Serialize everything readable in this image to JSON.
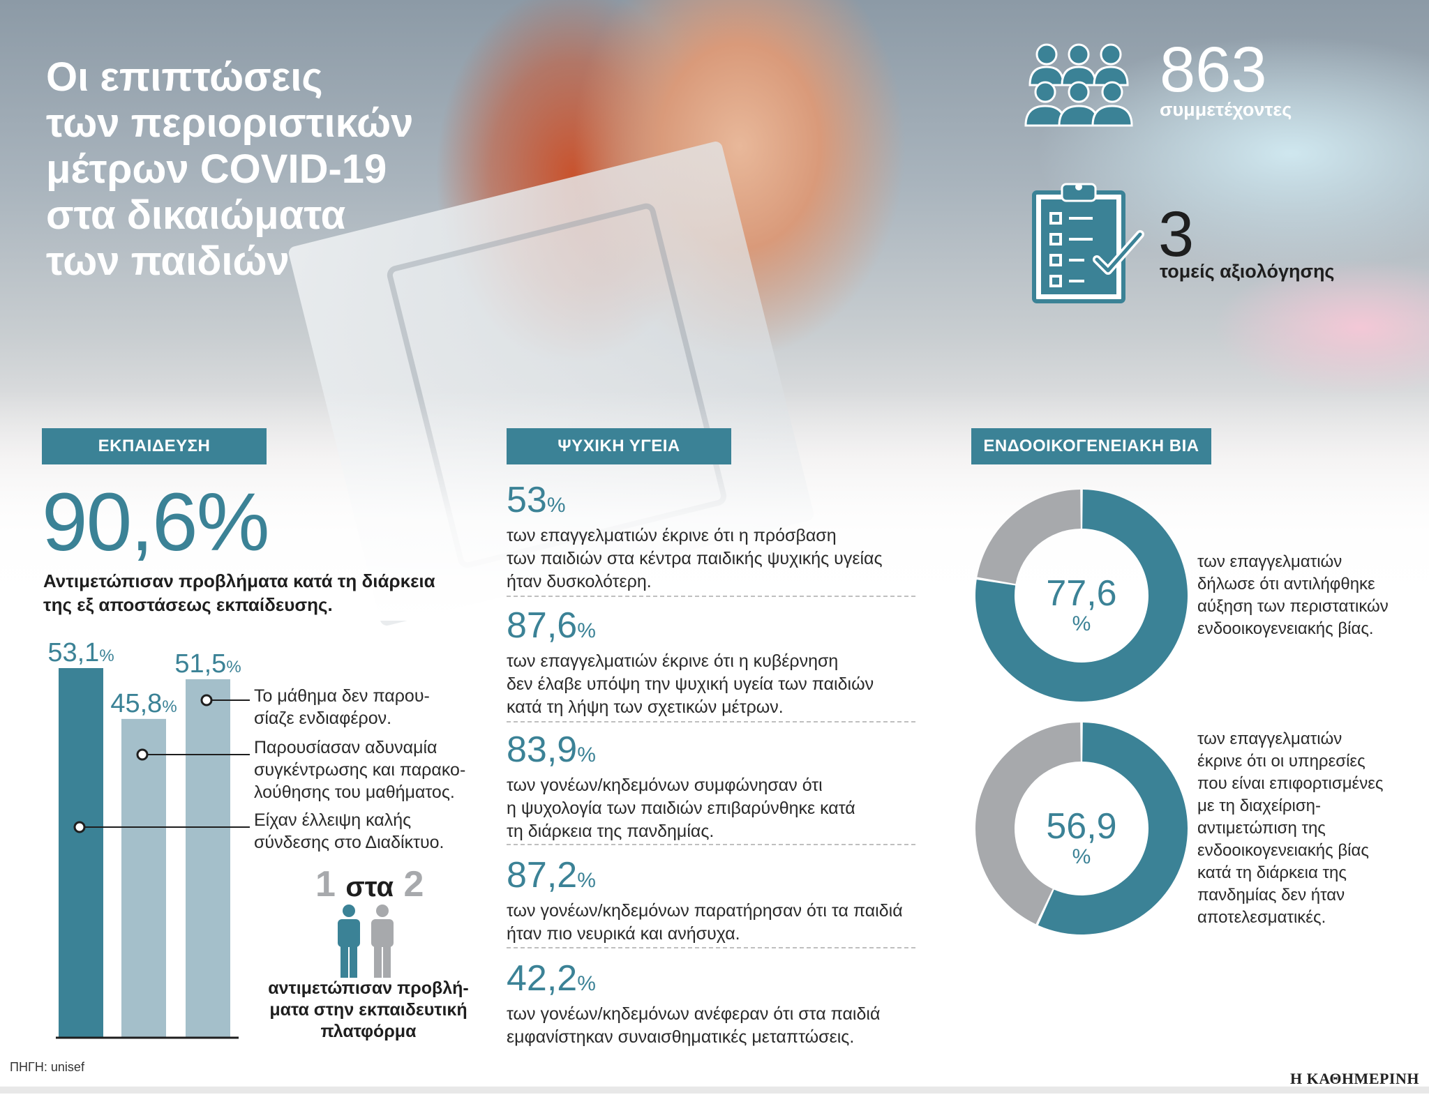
{
  "title": "Οι επιπτώσεις\nτων περιοριστικών\nμέτρων COVID-19\nστα δικαιώματα\nτων παιδιών",
  "stats": {
    "participants": {
      "number": "863",
      "label": "συμμετέχοντες",
      "icon": "people-group-icon"
    },
    "sectors": {
      "number": "3",
      "label": "τομείς αξιολόγησης",
      "icon": "clipboard-checklist-icon"
    }
  },
  "colors": {
    "teal": "#3b8296",
    "light_bar": "#a4bfca",
    "grey": "#a7a9ac",
    "accent_text": "#3b8296"
  },
  "education": {
    "header": "ΕΚΠΑΙΔΕΥΣΗ",
    "big_value": "90,6%",
    "big_caption": "Αντιμετώπισαν προβλήματα κατά τη διάρκεια\nτης εξ αποστάσεως εκπαίδευσης.",
    "one_in_two": {
      "one": "1",
      "sta": "στα",
      "two": "2",
      "caption": "αντιμετώπισαν προβλή-\nματα στην εκπαιδευτική\nπλατφόρμα"
    }
  },
  "chart_data": [
    {
      "type": "bar",
      "title": "",
      "categories": [
        "Είχαν έλλειψη καλής σύνδεσης στο Διαδίκτυο.",
        "Παρουσίασαν αδυναμία συγκέντρωσης και παρακολούθησης του μαθήματος.",
        "Το μάθημα δεν παρουσίαζε ενδιαφέρον."
      ],
      "values": [
        53.1,
        45.8,
        51.5
      ],
      "value_labels": [
        {
          "num": "53,1",
          "unit": "%"
        },
        {
          "num": "45,8",
          "unit": "%"
        },
        {
          "num": "51,5",
          "unit": "%"
        }
      ],
      "legend_texts": [
        "Το μάθημα δεν παρου-\nσίαζε ενδιαφέρον.",
        "Παρουσίασαν αδυναμία\nσυγκέντρωσης και παρακο-\nλούθησης του μαθήματος.",
        "Είχαν έλλειψη καλής\nσύνδεσης στο Διαδίκτυο."
      ],
      "ylim": [
        0,
        60
      ],
      "xlabel": "",
      "ylabel": "",
      "grid": false
    },
    {
      "type": "pie",
      "title": "",
      "values": [
        77.6,
        22.4
      ],
      "center_label": {
        "num": "77,6",
        "unit": "%"
      },
      "caption": "των επαγγελματιών\nδήλωσε ότι αντιλήφθηκε\nαύξηση των περιστατικών\nενδοοικογενειακής βίας."
    },
    {
      "type": "pie",
      "title": "",
      "values": [
        56.9,
        43.1
      ],
      "center_label": {
        "num": "56,9",
        "unit": "%"
      },
      "caption": "των επαγγελματιών\nέκρινε ότι οι υπηρεσίες\nπου είναι επιφορτισμένες\nμε τη διαχείριση-\nαντιμετώπιση της\nενδοοικογενειακής βίας\nκατά τη διάρκεια της\nπανδημίας δεν ήταν\nαποτελεσματικές."
    }
  ],
  "mental_health": {
    "header": "ΨΥΧΙΚΗ ΥΓΕΙΑ",
    "items": [
      {
        "num": "53",
        "unit": "%",
        "text": "των επαγγελματιών έκρινε ότι η πρόσβαση\nτων παιδιών στα κέντρα παιδικής ψυχικής υγείας\nήταν δυσκολότερη."
      },
      {
        "num": "87,6",
        "unit": "%",
        "text": "των επαγγελματιών έκρινε ότι η κυβέρνηση\nδεν έλαβε υπόψη την ψυχική υγεία των παιδιών\nκατά τη λήψη των σχετικών μέτρων."
      },
      {
        "num": "83,9",
        "unit": "%",
        "text": "των γονέων/κηδεμόνων συμφώνησαν ότι\nη ψυχολογία των παιδιών επιβαρύνθηκε κατά\nτη διάρκεια της πανδημίας."
      },
      {
        "num": "87,2",
        "unit": "%",
        "text": "των γονέων/κηδεμόνων παρατήρησαν ότι τα παιδιά\nήταν πιο νευρικά και ανήσυχα."
      },
      {
        "num": "42,2",
        "unit": "%",
        "text": "των γονέων/κηδεμόνων ανέφεραν ότι στα παιδιά\nεμφανίστηκαν συναισθηματικές μεταπτώσεις."
      }
    ]
  },
  "domestic_violence": {
    "header": "ΕΝΔΟΟΙΚΟΓΕΝΕΙΑΚΗ ΒΙΑ"
  },
  "source": "ΠΗΓΗ: unisef",
  "brand": "Η ΚΑΘΗΜΕΡΙΝΗ"
}
